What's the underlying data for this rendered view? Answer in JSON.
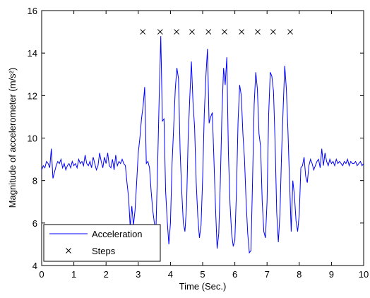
{
  "chart_data": {
    "type": "line",
    "xlabel": "Time (Sec.)",
    "ylabel": "Magnitude of accelerometer (m/s²)",
    "xlim": [
      0,
      10
    ],
    "ylim": [
      4,
      16
    ],
    "xticks": [
      0,
      1,
      2,
      3,
      4,
      5,
      6,
      7,
      8,
      9,
      10
    ],
    "yticks": [
      4,
      6,
      8,
      10,
      12,
      14,
      16
    ],
    "legend": "lower left",
    "x": [
      0,
      0.05,
      0.1,
      0.15,
      0.2,
      0.25,
      0.3,
      0.35,
      0.4,
      0.45,
      0.5,
      0.55,
      0.6,
      0.65,
      0.7,
      0.75,
      0.8,
      0.85,
      0.9,
      0.95,
      1,
      1.05,
      1.1,
      1.15,
      1.2,
      1.25,
      1.3,
      1.35,
      1.4,
      1.45,
      1.5,
      1.55,
      1.6,
      1.65,
      1.7,
      1.75,
      1.8,
      1.85,
      1.9,
      1.95,
      2,
      2.05,
      2.1,
      2.15,
      2.2,
      2.25,
      2.3,
      2.35,
      2.4,
      2.45,
      2.5,
      2.55,
      2.6,
      2.65,
      2.7,
      2.75,
      2.8,
      2.85,
      2.9,
      2.95,
      3,
      3.05,
      3.1,
      3.15,
      3.2,
      3.25,
      3.3,
      3.35,
      3.4,
      3.45,
      3.5,
      3.55,
      3.6,
      3.65,
      3.7,
      3.75,
      3.8,
      3.85,
      3.9,
      3.95,
      4,
      4.05,
      4.1,
      4.15,
      4.2,
      4.25,
      4.3,
      4.35,
      4.4,
      4.45,
      4.5,
      4.55,
      4.6,
      4.65,
      4.7,
      4.75,
      4.8,
      4.85,
      4.9,
      4.95,
      5,
      5.05,
      5.1,
      5.15,
      5.2,
      5.25,
      5.3,
      5.35,
      5.4,
      5.45,
      5.5,
      5.55,
      5.6,
      5.65,
      5.7,
      5.75,
      5.8,
      5.85,
      5.9,
      5.95,
      6,
      6.05,
      6.1,
      6.15,
      6.2,
      6.25,
      6.3,
      6.35,
      6.4,
      6.45,
      6.5,
      6.55,
      6.6,
      6.65,
      6.7,
      6.75,
      6.8,
      6.85,
      6.9,
      6.95,
      7,
      7.05,
      7.1,
      7.15,
      7.2,
      7.25,
      7.3,
      7.35,
      7.4,
      7.45,
      7.5,
      7.55,
      7.6,
      7.65,
      7.7,
      7.75,
      7.8,
      7.85,
      7.9,
      7.95,
      8,
      8.05,
      8.1,
      8.15,
      8.2,
      8.25,
      8.3,
      8.35,
      8.4,
      8.45,
      8.5,
      8.55,
      8.6,
      8.65,
      8.7,
      8.75,
      8.8,
      8.85,
      8.9,
      8.95,
      9,
      9.05,
      9.1,
      9.15,
      9.2,
      9.25,
      9.3,
      9.35,
      9.4,
      9.45,
      9.5,
      9.55,
      9.6,
      9.65,
      9.7,
      9.75,
      9.8,
      9.85,
      9.9,
      9.95,
      10
    ],
    "series": [
      {
        "name": "Acceleration",
        "color": "#0000ff",
        "values": [
          8.5,
          8.7,
          8.6,
          8.9,
          8.8,
          8.6,
          9.5,
          8.1,
          8.4,
          8.7,
          8.9,
          8.8,
          9.0,
          8.6,
          8.8,
          8.5,
          8.7,
          8.8,
          8.6,
          8.9,
          8.7,
          8.8,
          8.6,
          9.0,
          8.8,
          8.9,
          8.7,
          9.2,
          8.8,
          8.7,
          8.9,
          8.6,
          9.1,
          8.8,
          8.5,
          8.7,
          9.3,
          8.9,
          8.6,
          9.1,
          8.8,
          9.3,
          8.7,
          8.6,
          9.0,
          8.5,
          9.2,
          8.7,
          8.9,
          8.8,
          9.0,
          8.8,
          8.7,
          7.9,
          7.2,
          5.8,
          6.8,
          5.9,
          6.6,
          7.9,
          9.3,
          10.0,
          10.9,
          11.5,
          12.4,
          8.8,
          8.9,
          8.6,
          7.5,
          6.6,
          6.0,
          5.7,
          8.6,
          11.9,
          14.8,
          10.8,
          10.9,
          7.5,
          6.1,
          5.0,
          6.0,
          8.8,
          10.5,
          12.3,
          13.3,
          12.8,
          9.4,
          7.5,
          6.0,
          5.6,
          6.8,
          10.0,
          11.9,
          13.6,
          11.7,
          10.5,
          7.9,
          6.3,
          5.3,
          5.9,
          8.1,
          11.1,
          12.9,
          14.2,
          10.7,
          11.0,
          11.2,
          9.0,
          6.7,
          4.8,
          5.5,
          8.0,
          11.2,
          13.3,
          12.5,
          13.8,
          9.3,
          6.9,
          5.5,
          4.9,
          5.2,
          7.5,
          10.8,
          12.5,
          12.0,
          10.2,
          9.0,
          7.0,
          5.5,
          4.6,
          4.7,
          8.0,
          11.6,
          13.1,
          12.3,
          10.2,
          9.6,
          7.0,
          5.6,
          5.3,
          7.0,
          11.1,
          13.1,
          12.9,
          12.2,
          9.8,
          6.5,
          5.1,
          6.4,
          9.2,
          11.4,
          13.4,
          12.3,
          10.3,
          7.9,
          5.6,
          8.0,
          7.3,
          6.1,
          5.6,
          6.4,
          8.6,
          8.7,
          9.1,
          8.2,
          7.9,
          8.7,
          9.0,
          8.8,
          8.5,
          8.7,
          8.9,
          9.0,
          8.6,
          9.5,
          8.7,
          9.3,
          8.9,
          8.7,
          9.0,
          8.8,
          8.9,
          8.7,
          9.0,
          8.8,
          8.9,
          8.8,
          8.7,
          8.9,
          8.8,
          9.0,
          8.7,
          8.9,
          8.8,
          8.8,
          8.9,
          8.7,
          8.8,
          8.9,
          8.7,
          8.8
        ]
      },
      {
        "name": "Steps",
        "color": "#000000",
        "marker": "x",
        "x": [
          3.14,
          3.68,
          4.19,
          4.67,
          5.18,
          5.68,
          6.21,
          6.71,
          7.19,
          7.72
        ],
        "values": [
          15,
          15,
          15,
          15,
          15,
          15,
          15,
          15,
          15,
          15
        ]
      }
    ]
  }
}
